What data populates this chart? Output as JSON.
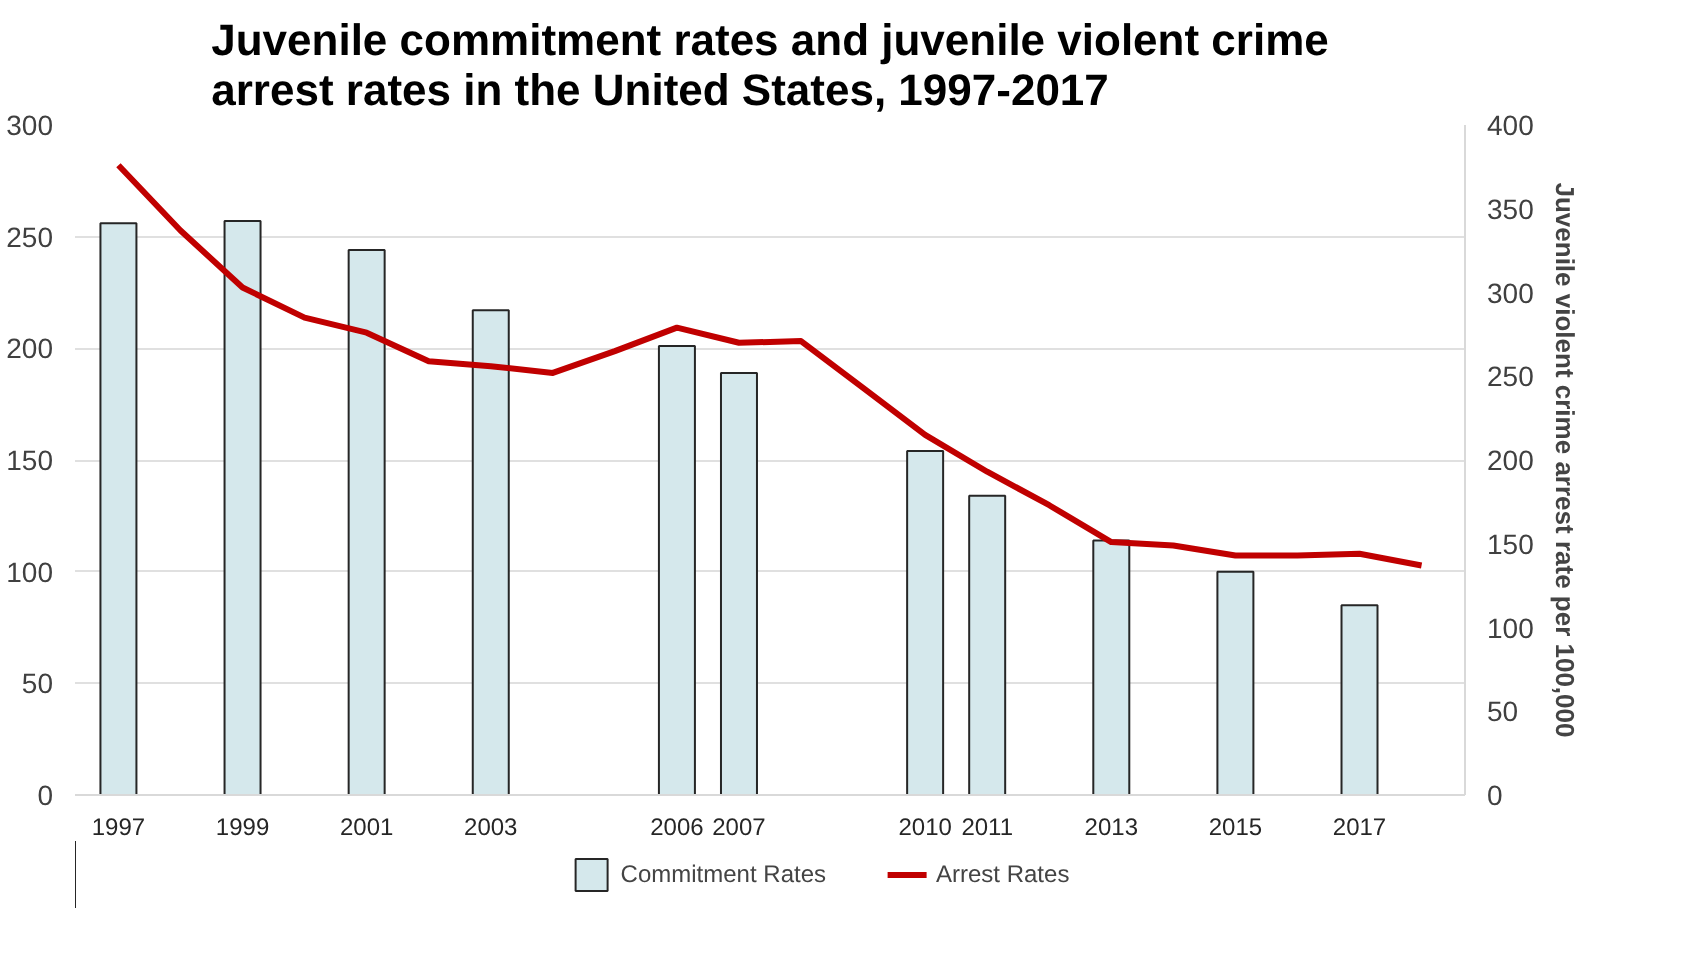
{
  "chart_data": {
    "type": "bar",
    "title": "Juvenile commitment rates and juvenile violent crime\narrest rates in the United States, 1997-2017",
    "y2label": "Juvenile violent crime arrest rate per 100,000",
    "categories": [
      "1997",
      null,
      "1999",
      null,
      "2001",
      null,
      "2003",
      null,
      null,
      "2006",
      "2007",
      null,
      null,
      "2010",
      "2011",
      null,
      "2013",
      null,
      "2015",
      null,
      "2017",
      null
    ],
    "series": [
      {
        "name": "Commitment Rates",
        "color": "#d5e8ec",
        "values": [
          256,
          null,
          257,
          null,
          244,
          null,
          217,
          null,
          null,
          201,
          189,
          null,
          null,
          154,
          134,
          null,
          114,
          null,
          100,
          null,
          85,
          null
        ]
      },
      {
        "name": "Arrest Rates",
        "type": "line",
        "axis": "y2",
        "color": "#c00000",
        "values": [
          376,
          337,
          303,
          285,
          276,
          259,
          256,
          252,
          265,
          279,
          270,
          271,
          243,
          215,
          193,
          173,
          151,
          149,
          143,
          143,
          144,
          137
        ]
      }
    ],
    "ylim": [
      0,
      300
    ],
    "yticks": [
      0,
      50,
      100,
      150,
      200,
      250,
      300
    ],
    "y2lim": [
      0,
      400
    ],
    "y2ticks": [
      0,
      50,
      100,
      150,
      200,
      250,
      300,
      350,
      400
    ],
    "grid": "y",
    "legend": "bottom"
  }
}
